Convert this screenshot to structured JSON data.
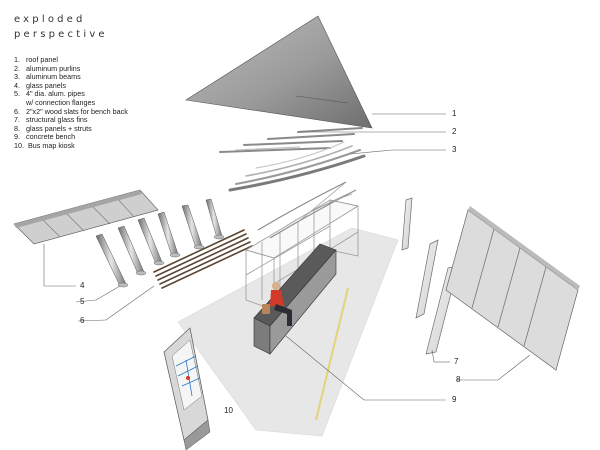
{
  "title": {
    "line1": "exploded",
    "line2": "perspective"
  },
  "legend": [
    {
      "num": "1.",
      "text": "roof panel"
    },
    {
      "num": "2.",
      "text": "aluminum purlins"
    },
    {
      "num": "3.",
      "text": "aluminum beams"
    },
    {
      "num": "4.",
      "text": "glass panels"
    },
    {
      "num": "5.",
      "text": "4\" dia. alum. pipes",
      "cont": "w/ connection flanges"
    },
    {
      "num": "6.",
      "text": "2\"x2\" wood slats for bench back"
    },
    {
      "num": "7.",
      "text": "structural glass fins"
    },
    {
      "num": "8.",
      "text": "glass panels + struts"
    },
    {
      "num": "9.",
      "text": "concrete bench"
    },
    {
      "num": "10.",
      "text": " Bus map kiosk"
    }
  ],
  "callouts": [
    "1",
    "2",
    "3",
    "4",
    "5",
    "6",
    "7",
    "8",
    "9",
    "10"
  ],
  "colors": {
    "roof_dark": "#7d7d7d",
    "roof_light": "#c9c9c9",
    "metal": "#9a9a9a",
    "glass": "#e2e2e2",
    "glass_edge": "#6f6f6f",
    "ground": "#e8e8e8",
    "curb_line": "#e6d98a",
    "bench": "#555555",
    "slats": "#5a4633",
    "figure_red": "#d23a2a",
    "leader": "#666666"
  }
}
